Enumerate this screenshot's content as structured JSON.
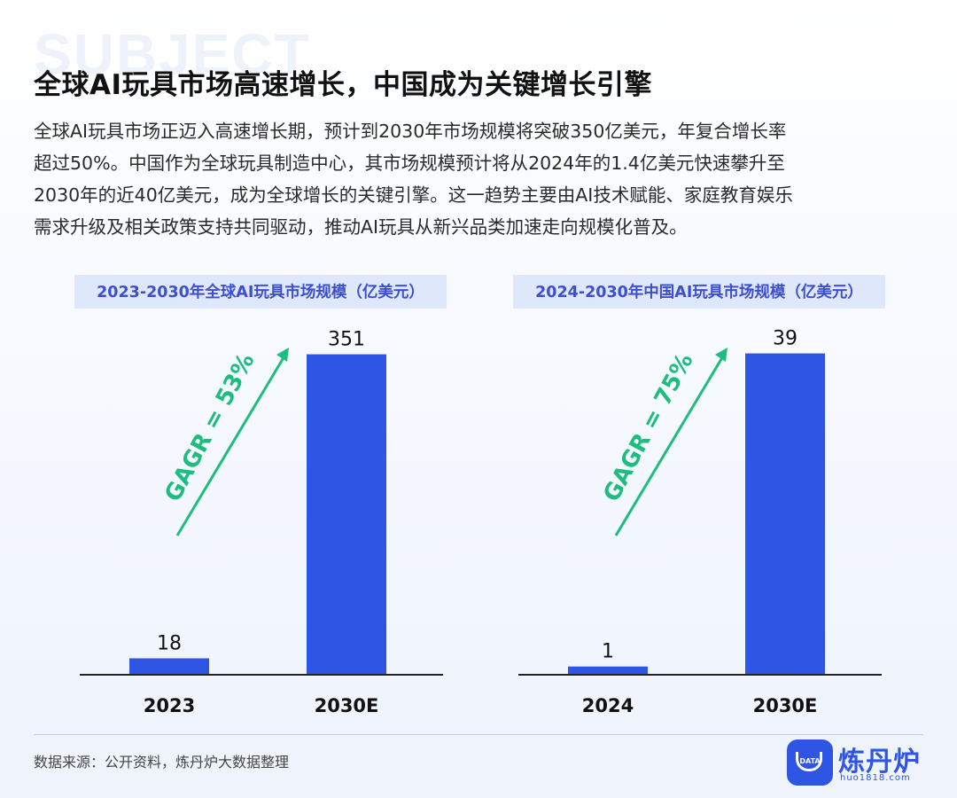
{
  "watermark": "SUBJECT",
  "title": "全球AI玩具市场高速增长，中国成为关键增长引擎",
  "intro_lines": [
    "全球AI玩具市场正迈入高速增长期，预计到2030年市场规模将突破350亿美元，年复合增长率",
    "超过50%。中国作为全球玩具制造中心，其市场规模预计将从2024年的1.4亿美元快速攀升至",
    "2030年的近40亿美元，成为全球增长的关键引擎。这一趋势主要由AI技术赋能、家庭教育娱乐",
    "需求升级及相关政策支持共同驱动，推动AI玩具从新兴品类加速走向规模化普及。"
  ],
  "chart_data": [
    {
      "type": "bar",
      "title": "2023-2030年全球AI玩具市场规模（亿美元）",
      "categories": [
        "2023",
        "2030E"
      ],
      "values": [
        18,
        351
      ],
      "value_labels": [
        "18",
        "351"
      ],
      "annotation": "GAGR = 53%",
      "ylim": [
        0,
        370
      ],
      "colors": {
        "bar": "#2f55e4",
        "annotation": "#1dbd7e"
      }
    },
    {
      "type": "bar",
      "title": "2024-2030年中国AI玩具市场规模（亿美元）",
      "categories": [
        "2024",
        "2030E"
      ],
      "values": [
        1,
        39
      ],
      "value_labels": [
        "1",
        "39"
      ],
      "annotation": "GAGR = 75%",
      "ylim": [
        0,
        41
      ],
      "colors": {
        "bar": "#2f55e4",
        "annotation": "#1dbd7e"
      }
    }
  ],
  "footer": {
    "source": "数据来源：公开资料，炼丹炉大数据整理"
  },
  "logo": {
    "icon_text": "DATA",
    "name": "炼丹炉",
    "url": "huo1818.com"
  }
}
